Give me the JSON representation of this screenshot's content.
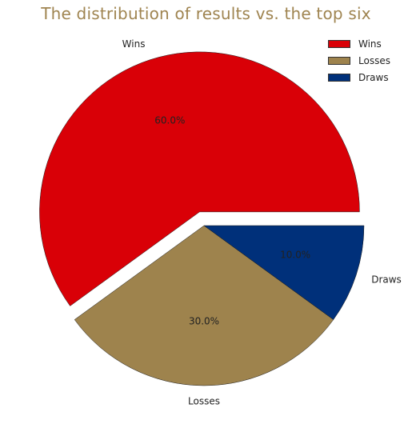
{
  "chart_data": {
    "type": "pie",
    "title": "The distribution of results vs. the top six",
    "categories": [
      "Wins",
      "Losses",
      "Draws"
    ],
    "values": [
      60,
      30,
      10
    ],
    "percent_labels": [
      "60.0%",
      "30.0%",
      "10.0%"
    ],
    "colors": [
      "#d90007",
      "#9e834d",
      "#00307a"
    ],
    "title_color": "#9f8450",
    "exploded": [
      true,
      false,
      false
    ],
    "shadow": true,
    "legend_position": "top-right"
  }
}
